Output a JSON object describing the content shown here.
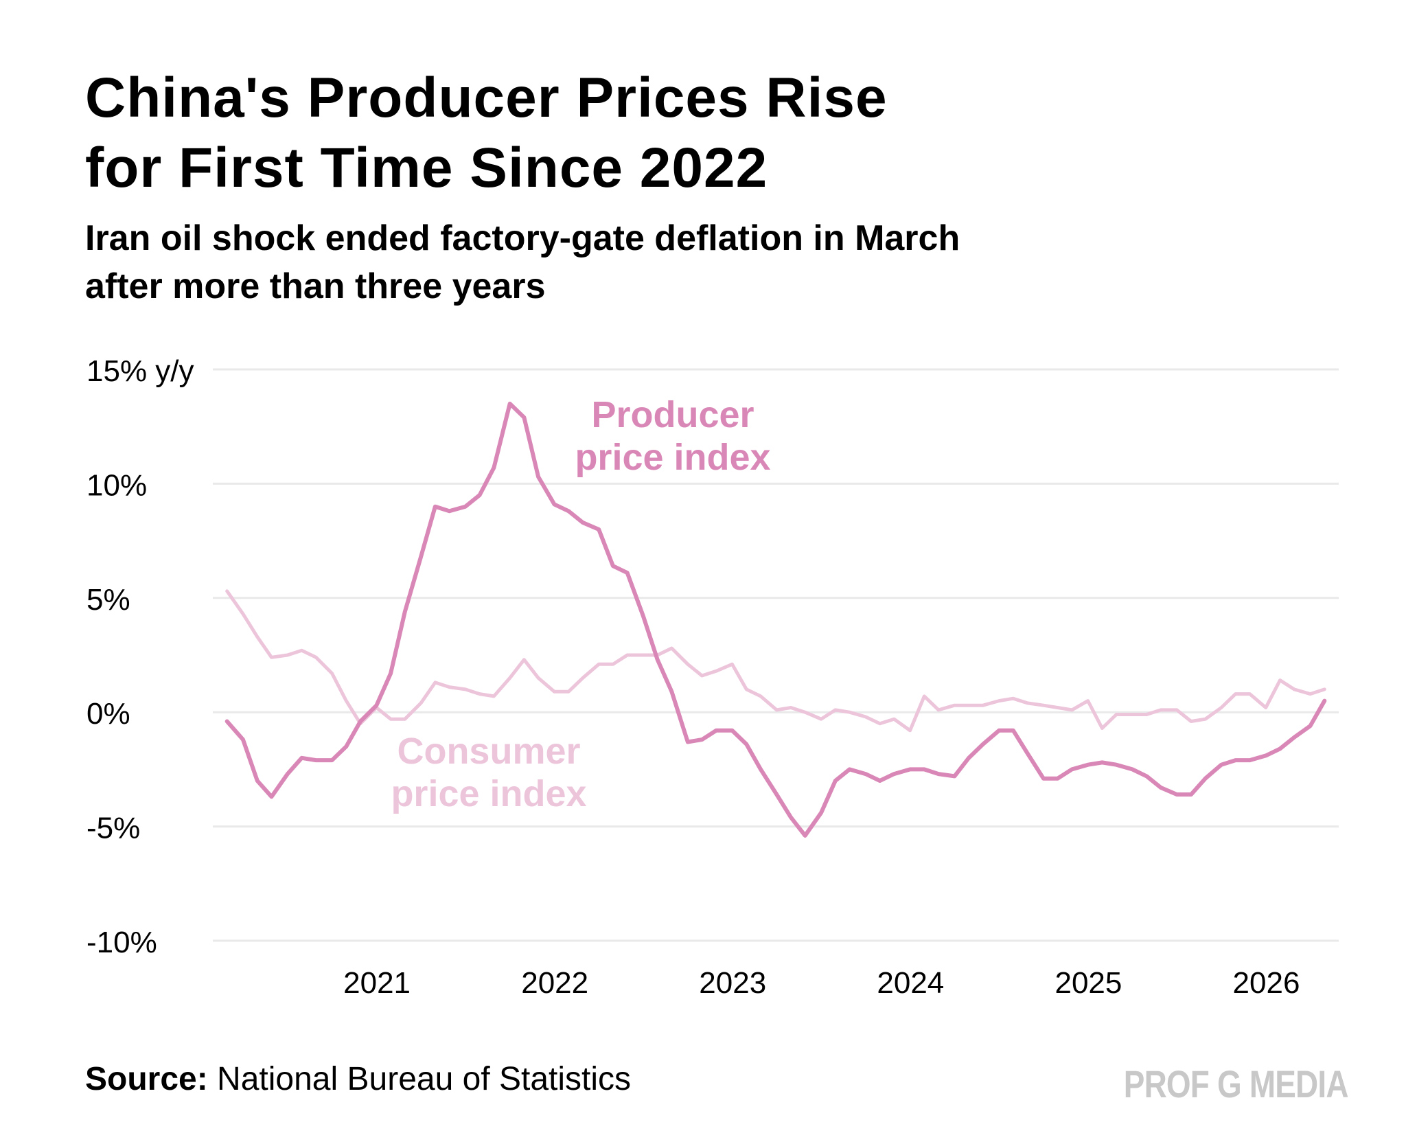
{
  "header": {
    "title_line1": "China's Producer Prices Rise",
    "title_line2": "for First Time Since 2022",
    "subtitle_line1": "Iran oil shock ended factory-gate deflation in March",
    "subtitle_line2": "after more than three years"
  },
  "footer": {
    "source_label": "Source:",
    "source_text": " National Bureau of Statistics",
    "brand": "PROF G MEDIA"
  },
  "colors": {
    "ppi": "#d987b6",
    "cpi": "#ecc5db",
    "grid": "#e9e9e9",
    "brand": "#c8c8c8"
  },
  "chart_data": {
    "type": "line",
    "title": "China's Producer Prices Rise for First Time Since 2022",
    "ylabel": "y/y",
    "ylim": [
      -10,
      15
    ],
    "xlim": [
      2020.0,
      2026.33
    ],
    "y_ticks": [
      {
        "value": 15,
        "label": "15% y/y"
      },
      {
        "value": 10,
        "label": "10%"
      },
      {
        "value": 5,
        "label": "5%"
      },
      {
        "value": 0,
        "label": "0%"
      },
      {
        "value": -5,
        "label": "-5%"
      },
      {
        "value": -10,
        "label": "-10%"
      }
    ],
    "x_ticks": [
      {
        "value": 2021,
        "label": "2021"
      },
      {
        "value": 2022,
        "label": "2022"
      },
      {
        "value": 2023,
        "label": "2023"
      },
      {
        "value": 2024,
        "label": "2024"
      },
      {
        "value": 2025,
        "label": "2025"
      },
      {
        "value": 2026,
        "label": "2026"
      }
    ],
    "series": [
      {
        "name": "Producer price index",
        "label_lines": [
          "Producer",
          "price index"
        ],
        "x": [
          2020.08,
          2020.17,
          2020.25,
          2020.33,
          2020.42,
          2020.5,
          2020.58,
          2020.67,
          2020.75,
          2020.83,
          2020.92,
          2021.0,
          2021.08,
          2021.17,
          2021.25,
          2021.33,
          2021.42,
          2021.5,
          2021.58,
          2021.67,
          2021.75,
          2021.83,
          2021.92,
          2022.0,
          2022.08,
          2022.17,
          2022.25,
          2022.33,
          2022.42,
          2022.5,
          2022.58,
          2022.67,
          2022.75,
          2022.83,
          2022.92,
          2023.0,
          2023.08,
          2023.17,
          2023.25,
          2023.33,
          2023.42,
          2023.5,
          2023.58,
          2023.67,
          2023.75,
          2023.83,
          2023.92,
          2024.0,
          2024.08,
          2024.17,
          2024.25,
          2024.33,
          2024.42,
          2024.5,
          2024.58,
          2024.67,
          2024.75,
          2024.83,
          2024.92,
          2025.0,
          2025.08,
          2025.17,
          2025.25,
          2025.33,
          2025.42,
          2025.5,
          2025.58,
          2025.67,
          2025.75,
          2025.83,
          2025.92,
          2026.0,
          2026.08,
          2026.17,
          2026.25
        ],
        "values": [
          -0.4,
          -1.2,
          -3.0,
          -3.7,
          -2.7,
          -2.0,
          -2.1,
          -2.1,
          -1.5,
          -0.4,
          0.3,
          1.7,
          4.4,
          6.8,
          9.0,
          8.8,
          9.0,
          9.5,
          10.7,
          13.5,
          12.9,
          10.3,
          9.1,
          8.8,
          8.3,
          8.0,
          6.4,
          6.1,
          4.2,
          2.3,
          0.9,
          -1.3,
          -1.2,
          -0.8,
          -0.8,
          -1.4,
          -2.5,
          -3.6,
          -4.6,
          -5.4,
          -4.4,
          -3.0,
          -2.5,
          -2.7,
          -3.0,
          -2.7,
          -2.5,
          -2.5,
          -2.7,
          -2.8,
          -2.0,
          -1.4,
          -0.8,
          -0.8,
          -1.8,
          -2.9,
          -2.9,
          -2.5,
          -2.3,
          -2.2,
          -2.3,
          -2.5,
          -2.8,
          -3.3,
          -3.6,
          -3.6,
          -2.9,
          -2.3,
          -2.1,
          -2.1,
          -1.9,
          -1.6,
          -1.1,
          -0.6,
          0.5
        ]
      },
      {
        "name": "Consumer price index",
        "label_lines": [
          "Consumer",
          "price index"
        ],
        "x": [
          2020.08,
          2020.17,
          2020.25,
          2020.33,
          2020.42,
          2020.5,
          2020.58,
          2020.67,
          2020.75,
          2020.83,
          2020.92,
          2021.0,
          2021.08,
          2021.17,
          2021.25,
          2021.33,
          2021.42,
          2021.5,
          2021.58,
          2021.67,
          2021.75,
          2021.83,
          2021.92,
          2022.0,
          2022.08,
          2022.17,
          2022.25,
          2022.33,
          2022.42,
          2022.5,
          2022.58,
          2022.67,
          2022.75,
          2022.83,
          2022.92,
          2023.0,
          2023.08,
          2023.17,
          2023.25,
          2023.33,
          2023.42,
          2023.5,
          2023.58,
          2023.67,
          2023.75,
          2023.83,
          2023.92,
          2024.0,
          2024.08,
          2024.17,
          2024.25,
          2024.33,
          2024.42,
          2024.5,
          2024.58,
          2024.67,
          2024.75,
          2024.83,
          2024.92,
          2025.0,
          2025.08,
          2025.17,
          2025.25,
          2025.33,
          2025.42,
          2025.5,
          2025.58,
          2025.67,
          2025.75,
          2025.83,
          2025.92,
          2026.0,
          2026.08,
          2026.17,
          2026.25
        ],
        "values": [
          5.3,
          4.3,
          3.3,
          2.4,
          2.5,
          2.7,
          2.4,
          1.7,
          0.5,
          -0.5,
          0.2,
          -0.3,
          -0.3,
          0.4,
          1.3,
          1.1,
          1.0,
          0.8,
          0.7,
          1.5,
          2.3,
          1.5,
          0.9,
          0.9,
          1.5,
          2.1,
          2.1,
          2.5,
          2.5,
          2.5,
          2.8,
          2.1,
          1.6,
          1.8,
          2.1,
          1.0,
          0.7,
          0.1,
          0.2,
          0.0,
          -0.3,
          0.1,
          0.0,
          -0.2,
          -0.5,
          -0.3,
          -0.8,
          0.7,
          0.1,
          0.3,
          0.3,
          0.3,
          0.5,
          0.6,
          0.4,
          0.3,
          0.2,
          0.1,
          0.5,
          -0.7,
          -0.1,
          -0.1,
          -0.1,
          0.1,
          0.1,
          -0.4,
          -0.3,
          0.2,
          0.8,
          0.8,
          0.2,
          1.4,
          1.0,
          0.8,
          1.0
        ]
      }
    ]
  }
}
